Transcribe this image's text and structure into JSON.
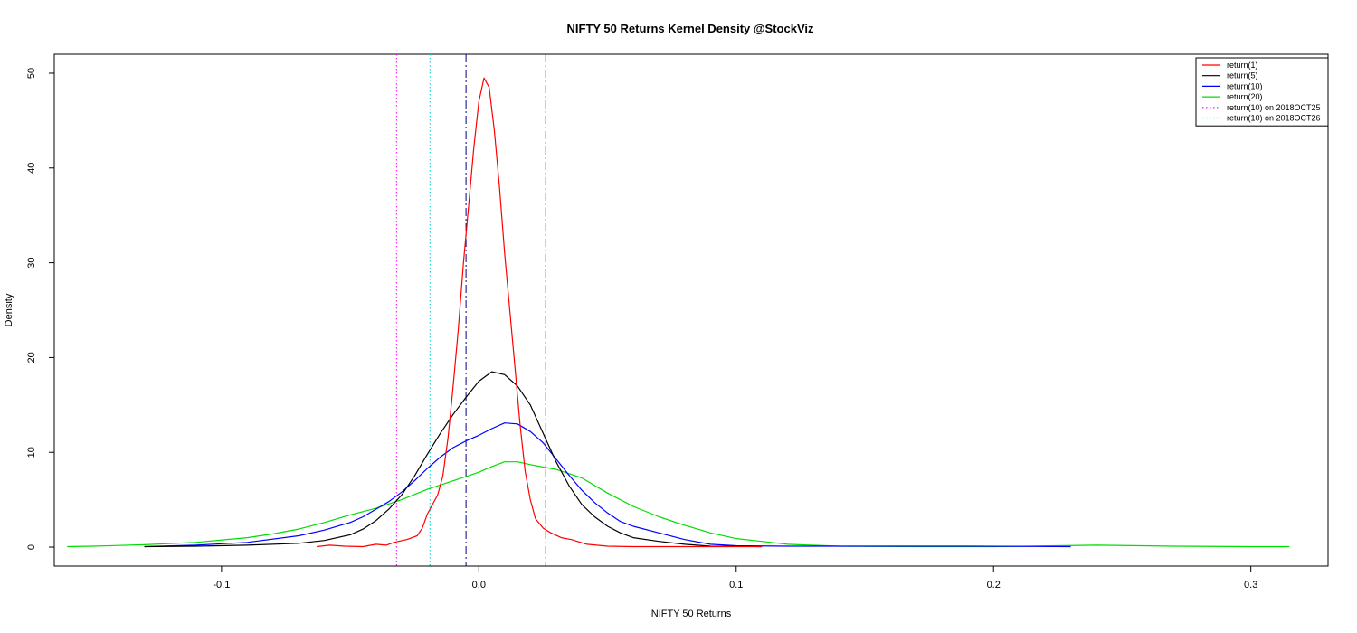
{
  "chart_data": {
    "type": "line",
    "title": "NIFTY 50 Returns Kernel Density @StockViz",
    "xlabel": "NIFTY 50 Returns",
    "ylabel": "Density",
    "xlim": [
      -0.165,
      0.33
    ],
    "ylim": [
      -2,
      52
    ],
    "x_ticks": [
      -0.1,
      0.0,
      0.1,
      0.2,
      0.3
    ],
    "x_tick_labels": [
      "-0.1",
      "0.0",
      "0.1",
      "0.2",
      "0.3"
    ],
    "y_ticks": [
      0,
      10,
      20,
      30,
      40,
      50
    ],
    "y_tick_labels": [
      "0",
      "10",
      "20",
      "30",
      "40",
      "50"
    ],
    "grid": false,
    "legend_position": "top-right",
    "series": [
      {
        "name": "return(1)",
        "color": "#ff0000",
        "style": "solid",
        "points": [
          [
            -0.063,
            0.05
          ],
          [
            -0.058,
            0.2
          ],
          [
            -0.052,
            0.1
          ],
          [
            -0.045,
            0.05
          ],
          [
            -0.04,
            0.3
          ],
          [
            -0.036,
            0.2
          ],
          [
            -0.033,
            0.5
          ],
          [
            -0.028,
            0.8
          ],
          [
            -0.024,
            1.2
          ],
          [
            -0.022,
            2.0
          ],
          [
            -0.02,
            3.5
          ],
          [
            -0.018,
            4.5
          ],
          [
            -0.016,
            5.5
          ],
          [
            -0.014,
            7.5
          ],
          [
            -0.012,
            11.5
          ],
          [
            -0.01,
            17
          ],
          [
            -0.008,
            23
          ],
          [
            -0.006,
            30
          ],
          [
            -0.004,
            36
          ],
          [
            -0.002,
            42
          ],
          [
            0.0,
            47
          ],
          [
            0.002,
            49.5
          ],
          [
            0.004,
            48.5
          ],
          [
            0.006,
            44
          ],
          [
            0.008,
            38
          ],
          [
            0.01,
            31
          ],
          [
            0.012,
            25
          ],
          [
            0.014,
            19
          ],
          [
            0.016,
            13
          ],
          [
            0.018,
            8
          ],
          [
            0.02,
            5
          ],
          [
            0.022,
            3
          ],
          [
            0.025,
            2
          ],
          [
            0.028,
            1.5
          ],
          [
            0.032,
            1.0
          ],
          [
            0.036,
            0.8
          ],
          [
            0.042,
            0.3
          ],
          [
            0.05,
            0.1
          ],
          [
            0.06,
            0.05
          ],
          [
            0.08,
            0.05
          ],
          [
            0.11,
            0.05
          ]
        ]
      },
      {
        "name": "return(5)",
        "color": "#000000",
        "style": "solid",
        "points": [
          [
            -0.13,
            0.05
          ],
          [
            -0.11,
            0.1
          ],
          [
            -0.09,
            0.2
          ],
          [
            -0.07,
            0.4
          ],
          [
            -0.06,
            0.7
          ],
          [
            -0.05,
            1.3
          ],
          [
            -0.045,
            1.9
          ],
          [
            -0.04,
            2.8
          ],
          [
            -0.035,
            4.0
          ],
          [
            -0.03,
            5.5
          ],
          [
            -0.025,
            7.5
          ],
          [
            -0.02,
            9.8
          ],
          [
            -0.015,
            12.0
          ],
          [
            -0.01,
            14.0
          ],
          [
            -0.005,
            15.8
          ],
          [
            0.0,
            17.5
          ],
          [
            0.005,
            18.5
          ],
          [
            0.01,
            18.2
          ],
          [
            0.015,
            17.0
          ],
          [
            0.02,
            15.0
          ],
          [
            0.025,
            12.0
          ],
          [
            0.03,
            9.0
          ],
          [
            0.035,
            6.5
          ],
          [
            0.04,
            4.5
          ],
          [
            0.045,
            3.2
          ],
          [
            0.05,
            2.2
          ],
          [
            0.055,
            1.5
          ],
          [
            0.06,
            1.0
          ],
          [
            0.07,
            0.6
          ],
          [
            0.08,
            0.3
          ],
          [
            0.09,
            0.1
          ],
          [
            0.11,
            0.05
          ]
        ]
      },
      {
        "name": "return(10)",
        "color": "#0000ff",
        "style": "solid",
        "points": [
          [
            -0.13,
            0.05
          ],
          [
            -0.11,
            0.2
          ],
          [
            -0.09,
            0.5
          ],
          [
            -0.07,
            1.2
          ],
          [
            -0.06,
            1.8
          ],
          [
            -0.05,
            2.6
          ],
          [
            -0.045,
            3.2
          ],
          [
            -0.04,
            4.0
          ],
          [
            -0.035,
            4.8
          ],
          [
            -0.03,
            5.8
          ],
          [
            -0.025,
            7.0
          ],
          [
            -0.02,
            8.3
          ],
          [
            -0.015,
            9.5
          ],
          [
            -0.01,
            10.5
          ],
          [
            -0.005,
            11.2
          ],
          [
            0.0,
            11.8
          ],
          [
            0.005,
            12.5
          ],
          [
            0.01,
            13.1
          ],
          [
            0.015,
            13.0
          ],
          [
            0.02,
            12.2
          ],
          [
            0.025,
            11.0
          ],
          [
            0.03,
            9.3
          ],
          [
            0.035,
            7.6
          ],
          [
            0.04,
            6.0
          ],
          [
            0.045,
            4.7
          ],
          [
            0.05,
            3.6
          ],
          [
            0.055,
            2.7
          ],
          [
            0.06,
            2.2
          ],
          [
            0.07,
            1.5
          ],
          [
            0.08,
            0.8
          ],
          [
            0.09,
            0.3
          ],
          [
            0.1,
            0.15
          ],
          [
            0.12,
            0.1
          ],
          [
            0.15,
            0.1
          ],
          [
            0.19,
            0.1
          ],
          [
            0.23,
            0.05
          ]
        ]
      },
      {
        "name": "return(20)",
        "color": "#00dd00",
        "style": "solid",
        "points": [
          [
            -0.16,
            0.05
          ],
          [
            -0.15,
            0.1
          ],
          [
            -0.13,
            0.25
          ],
          [
            -0.11,
            0.5
          ],
          [
            -0.09,
            1.0
          ],
          [
            -0.08,
            1.4
          ],
          [
            -0.07,
            1.9
          ],
          [
            -0.06,
            2.6
          ],
          [
            -0.05,
            3.4
          ],
          [
            -0.04,
            4.1
          ],
          [
            -0.03,
            5.0
          ],
          [
            -0.02,
            6.1
          ],
          [
            -0.01,
            7.0
          ],
          [
            0.0,
            7.9
          ],
          [
            0.005,
            8.5
          ],
          [
            0.01,
            9.0
          ],
          [
            0.015,
            9.0
          ],
          [
            0.02,
            8.7
          ],
          [
            0.03,
            8.2
          ],
          [
            0.04,
            7.3
          ],
          [
            0.05,
            5.7
          ],
          [
            0.06,
            4.3
          ],
          [
            0.07,
            3.2
          ],
          [
            0.08,
            2.3
          ],
          [
            0.09,
            1.5
          ],
          [
            0.1,
            0.9
          ],
          [
            0.11,
            0.6
          ],
          [
            0.12,
            0.3
          ],
          [
            0.14,
            0.1
          ],
          [
            0.17,
            0.05
          ],
          [
            0.2,
            0.05
          ],
          [
            0.24,
            0.2
          ],
          [
            0.27,
            0.1
          ],
          [
            0.3,
            0.05
          ],
          [
            0.315,
            0.05
          ]
        ]
      }
    ],
    "vertical_lines": [
      {
        "name": "return(10) on 2018OCT25",
        "x": -0.032,
        "color": "#ff00ff",
        "style": "dotted",
        "in_legend": true
      },
      {
        "name": "return(10) on 2018OCT26",
        "x": -0.019,
        "color": "#00cccc",
        "style": "dotted",
        "in_legend": true
      },
      {
        "name": "",
        "x": -0.005,
        "color": "#000080",
        "style": "dashdot",
        "in_legend": false
      },
      {
        "name": "",
        "x": 0.026,
        "color": "#0000cc",
        "style": "dashdot",
        "in_legend": false
      }
    ]
  }
}
